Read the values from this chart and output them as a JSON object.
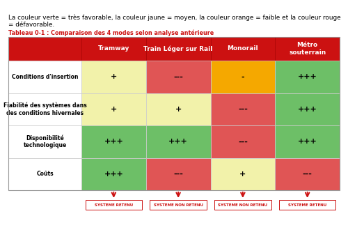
{
  "title_text": "La couleur verte = très favorable, la couleur jaune = moyen, la couleur orange = faible et la couleur rouge\n= défavorable.",
  "subtitle": "Tableau 0-1 : Comparaison des 4 modes selon analyse antérieure",
  "columns": [
    "Tramway",
    "Train Léger sur Rail",
    "Monorail",
    "Métro\nsouterrain"
  ],
  "rows": [
    "Conditions d'insertion",
    "Fiabilité des systèmes dans\ndes conditions hivernales",
    "Disponibilité\ntechnologique",
    "Coûts"
  ],
  "values": [
    [
      "+",
      "---",
      "-",
      "+++"
    ],
    [
      "+",
      "+",
      "---",
      "+++"
    ],
    [
      "+++",
      "+++",
      "---",
      "+++"
    ],
    [
      "+++",
      "---",
      "+",
      "---"
    ]
  ],
  "colors": [
    [
      "#f2f2aa",
      "#e05555",
      "#f5a800",
      "#6dbf67"
    ],
    [
      "#f2f2aa",
      "#f2f2aa",
      "#e05555",
      "#6dbf67"
    ],
    [
      "#6dbf67",
      "#6dbf67",
      "#e05555",
      "#6dbf67"
    ],
    [
      "#6dbf67",
      "#e05555",
      "#f2f2aa",
      "#e05555"
    ]
  ],
  "header_color": "#cc1111",
  "header_text_color": "#ffffff",
  "border_color": "#cccccc",
  "footer_labels": [
    "SYSTEME RETENU",
    "SYSTEME NON RETENU",
    "SYSTEME NON RETENU",
    "SYSTEME RETENU"
  ],
  "footer_text_color": "#cc1111",
  "background_color": "#ffffff"
}
